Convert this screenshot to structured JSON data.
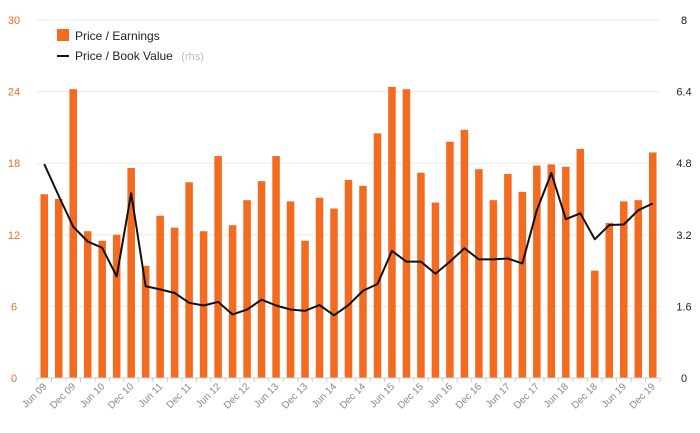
{
  "chart_data": {
    "type": "bar",
    "categories": [
      "Jun 09",
      "Sep 09",
      "Dec 09",
      "Mar 10",
      "Jun 10",
      "Sep 10",
      "Dec 10",
      "Mar 11",
      "Jun 11",
      "Sep 11",
      "Dec 11",
      "Mar 12",
      "Jun 12",
      "Sep 12",
      "Dec 12",
      "Mar 13",
      "Jun 13",
      "Sep 13",
      "Dec 13",
      "Mar 14",
      "Jun 14",
      "Sep 14",
      "Dec 14",
      "Mar 15",
      "Jun 15",
      "Sep 15",
      "Dec 15",
      "Mar 16",
      "Jun 16",
      "Sep 16",
      "Dec 16",
      "Mar 17",
      "Jun 17",
      "Sep 17",
      "Dec 17",
      "Mar 18",
      "Jun 18",
      "Sep 18",
      "Dec 18",
      "Mar 19",
      "Jun 19",
      "Sep 19",
      "Dec 19"
    ],
    "x_tick_labels": [
      "Jun 09",
      "Dec 09",
      "Jun 10",
      "Dec 10",
      "Jun 11",
      "Dec 11",
      "Jun 12",
      "Dec 12",
      "Jun 13",
      "Dec 13",
      "Jun 14",
      "Dec 14",
      "Jun 15",
      "Dec 15",
      "Jun 16",
      "Dec 16",
      "Jun 17",
      "Dec 17",
      "Jun 18",
      "Dec 18",
      "Jun 19",
      "Dec 19"
    ],
    "series": [
      {
        "name": "Price / Earnings",
        "type": "bar",
        "axis": "left",
        "color": "#f26b21",
        "values": [
          15.4,
          15.0,
          24.2,
          12.3,
          11.5,
          12.0,
          17.6,
          9.4,
          13.6,
          12.6,
          16.4,
          12.3,
          18.6,
          12.8,
          14.9,
          16.5,
          18.6,
          14.8,
          11.5,
          15.1,
          14.2,
          16.6,
          16.1,
          20.5,
          24.4,
          24.2,
          17.2,
          14.7,
          19.8,
          20.8,
          17.5,
          14.9,
          17.1,
          15.6,
          17.8,
          17.9,
          17.7,
          19.2,
          9.0,
          13.0,
          14.8,
          14.9,
          18.9
        ]
      },
      {
        "name": "Price / Book Value",
        "name_note": "(rhs)",
        "type": "line",
        "axis": "right",
        "color": "#111111",
        "values": [
          4.78,
          4.07,
          3.38,
          3.05,
          2.91,
          2.27,
          4.13,
          2.05,
          1.98,
          1.9,
          1.68,
          1.62,
          1.7,
          1.42,
          1.53,
          1.75,
          1.62,
          1.53,
          1.5,
          1.63,
          1.4,
          1.63,
          1.95,
          2.1,
          2.84,
          2.6,
          2.6,
          2.33,
          2.6,
          2.9,
          2.65,
          2.65,
          2.67,
          2.56,
          3.75,
          4.58,
          3.55,
          3.68,
          3.1,
          3.42,
          3.43,
          3.75,
          3.9
        ]
      }
    ],
    "y_left": {
      "ylim": [
        0,
        30
      ],
      "ticks": [
        "0",
        "6",
        "12",
        "18",
        "24",
        "30"
      ],
      "color": "#f26b21"
    },
    "y_right": {
      "ylim": [
        0,
        8
      ],
      "ticks": [
        "0",
        "1.6",
        "3.2",
        "4.8",
        "6.4",
        "8"
      ]
    },
    "grid": true,
    "legend_position": "top-left",
    "title": "",
    "xlabel": "",
    "ylabel": ""
  }
}
